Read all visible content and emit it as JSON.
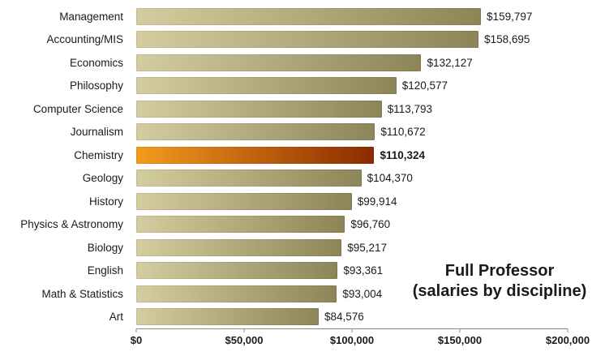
{
  "chart_data": {
    "type": "bar",
    "orientation": "horizontal",
    "title": "Full Professor",
    "subtitle": "(salaries by discipline)",
    "categories": [
      "Management",
      "Accounting/MIS",
      "Economics",
      "Philosophy",
      "Computer Science",
      "Journalism",
      "Chemistry",
      "Geology",
      "History",
      "Physics & Astronomy",
      "Biology",
      "English",
      "Math & Statistics",
      "Art"
    ],
    "values": [
      159797,
      158695,
      132127,
      120577,
      113793,
      110672,
      110324,
      104370,
      99914,
      96760,
      95217,
      93361,
      93004,
      84576
    ],
    "value_labels": [
      "$159,797",
      "$158,695",
      "$132,127",
      "$120,577",
      "$113,793",
      "$110,672",
      "$110,324",
      "$104,370",
      "$99,914",
      "$96,760",
      "$95,217",
      "$93,361",
      "$93,004",
      "$84,576"
    ],
    "highlight_category": "Chemistry",
    "highlight_index": 6,
    "xlabel": "",
    "ylabel": "",
    "xlim": [
      0,
      200000
    ],
    "x_ticks": [
      "$0",
      "$50,000",
      "$100,000",
      "$150,000",
      "$200,000"
    ],
    "grid": false,
    "legend": "none",
    "colors": {
      "bar_light": "#d4cda0",
      "bar_dark": "#8d8557",
      "highlight_light": "#f59b1e",
      "highlight_dark": "#8a2b00",
      "axis_line": "#898989",
      "text": "#1a1a1a"
    }
  }
}
